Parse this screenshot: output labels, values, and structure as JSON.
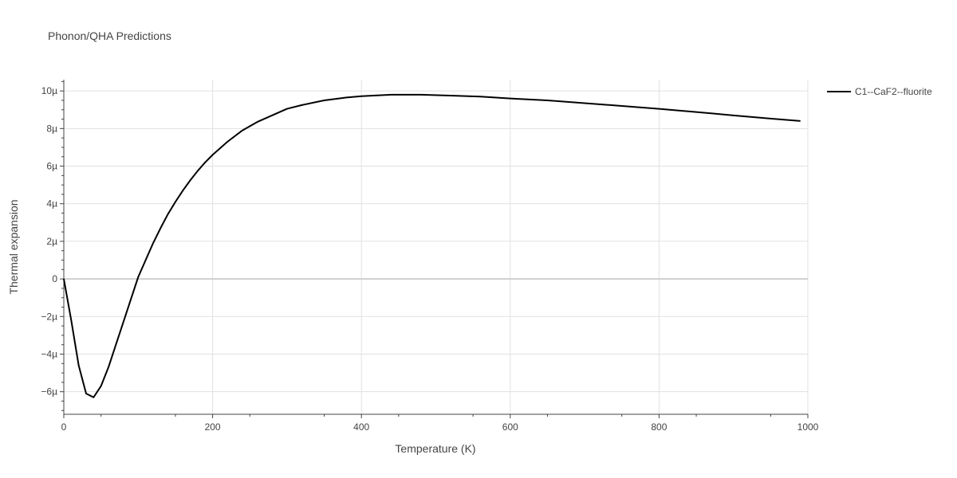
{
  "chart_data": {
    "type": "line",
    "title": "Phonon/QHA Predictions",
    "xlabel": "Temperature (K)",
    "ylabel": "Thermal expansion",
    "xlim": [
      0,
      1000
    ],
    "ylim": [
      -7.2e-06,
      1.06e-05
    ],
    "x_ticks": [
      0,
      200,
      400,
      600,
      800,
      1000
    ],
    "x_tick_labels": [
      "0",
      "200",
      "400",
      "600",
      "800",
      "1000"
    ],
    "y_ticks": [
      -6e-06,
      -4e-06,
      -2e-06,
      0,
      2e-06,
      4e-06,
      6e-06,
      8e-06,
      1e-05
    ],
    "y_tick_labels": [
      "−6µ",
      "−4µ",
      "−2µ",
      "0",
      "2µ",
      "4µ",
      "6µ",
      "8µ",
      "10µ"
    ],
    "grid": true,
    "legend_position": "top-right",
    "line_color": "#000000",
    "series": [
      {
        "name": "C1--CaF2--fluorite",
        "x": [
          0,
          10,
          20,
          30,
          40,
          50,
          60,
          70,
          80,
          90,
          100,
          110,
          120,
          130,
          140,
          150,
          160,
          170,
          180,
          190,
          200,
          220,
          240,
          260,
          280,
          300,
          320,
          350,
          380,
          400,
          440,
          480,
          520,
          560,
          600,
          650,
          700,
          750,
          800,
          850,
          900,
          950,
          990
        ],
        "y": [
          0,
          -2.2e-06,
          -4.6e-06,
          -6.1e-06,
          -6.3e-06,
          -5.7e-06,
          -4.7e-06,
          -3.5e-06,
          -2.3e-06,
          -1.1e-06,
          1e-07,
          1e-06,
          1.9e-06,
          2.7e-06,
          3.45e-06,
          4.1e-06,
          4.7e-06,
          5.25e-06,
          5.75e-06,
          6.2e-06,
          6.6e-06,
          7.3e-06,
          7.9e-06,
          8.35e-06,
          8.7e-06,
          9.05e-06,
          9.25e-06,
          9.5e-06,
          9.65e-06,
          9.72e-06,
          9.8e-06,
          9.8e-06,
          9.75e-06,
          9.7e-06,
          9.6e-06,
          9.5e-06,
          9.35e-06,
          9.2e-06,
          9.05e-06,
          8.88e-06,
          8.7e-06,
          8.53e-06,
          8.4e-06
        ]
      }
    ]
  }
}
